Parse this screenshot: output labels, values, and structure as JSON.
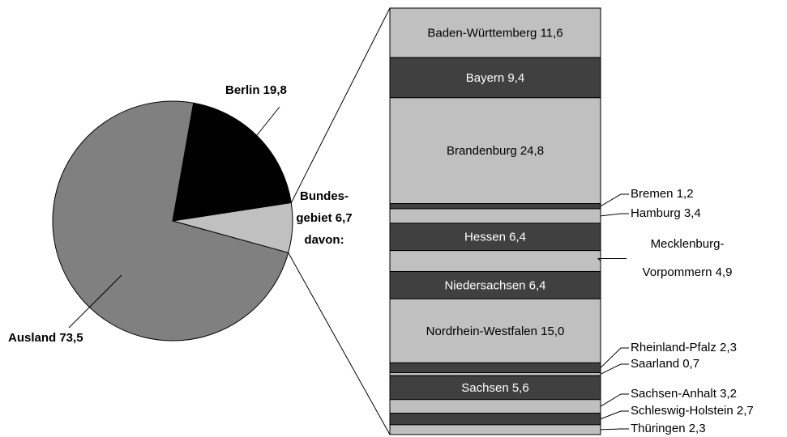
{
  "chart_data": {
    "type": "bar-of-pie",
    "pie": {
      "values": [
        19.8,
        6.7,
        73.5
      ],
      "value_labels": [
        [
          "Berlin 19,8"
        ],
        [
          "Bundes-",
          "gebiet  6,7",
          "davon:"
        ],
        [
          "Ausland 73,5"
        ]
      ],
      "colors": [
        "#000000",
        "#c0c0c0",
        "#808080"
      ]
    },
    "bar": {
      "values": [
        11.6,
        9.4,
        24.8,
        1.2,
        3.4,
        6.4,
        4.9,
        6.4,
        15.0,
        2.3,
        0.7,
        5.6,
        3.2,
        2.7,
        2.3
      ],
      "value_labels": [
        [
          "Baden-Württemberg 11,6"
        ],
        [
          "Bayern 9,4"
        ],
        [
          "Brandenburg 24,8"
        ],
        [
          "Bremen 1,2"
        ],
        [
          "Hamburg 3,4"
        ],
        [
          "Hessen 6,4"
        ],
        [
          "Mecklenburg-",
          "Vorpommern 4,9"
        ],
        [
          "Niedersachsen 6,4"
        ],
        [
          "Nordrhein-Westfalen 15,0"
        ],
        [
          "Rheinland-Pfalz 2,3"
        ],
        [
          "Saarland 0,7"
        ],
        [
          "Sachsen 5,6"
        ],
        [
          "Sachsen-Anhalt 3,2"
        ],
        [
          "Schleswig-Holstein 2,7"
        ],
        [
          "Thüringen 2,3"
        ]
      ],
      "colors": [
        "#c0c0c0",
        "#404040"
      ]
    }
  }
}
